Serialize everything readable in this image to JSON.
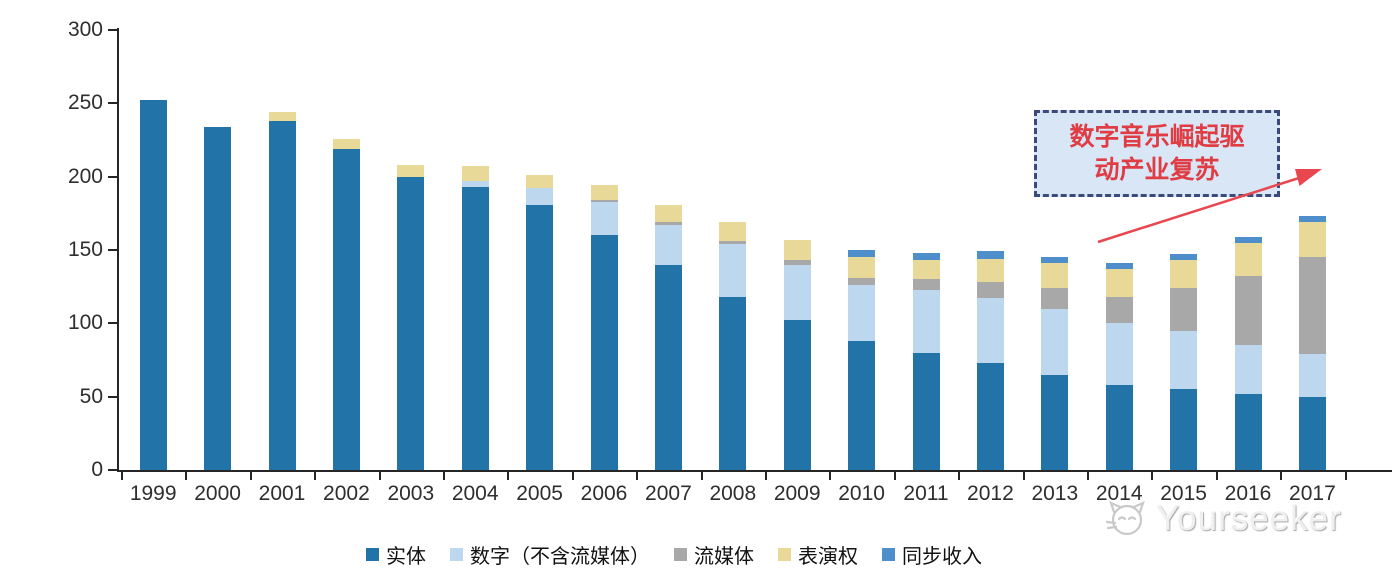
{
  "chart_data": {
    "type": "bar",
    "stacked": true,
    "title": "",
    "xlabel": "",
    "ylabel": "",
    "ylim": [
      0,
      300
    ],
    "yticks": [
      0,
      50,
      100,
      150,
      200,
      250,
      300
    ],
    "grid": false,
    "legend_position": "bottom",
    "categories": [
      "1999",
      "2000",
      "2001",
      "2002",
      "2003",
      "2004",
      "2005",
      "2006",
      "2007",
      "2008",
      "2009",
      "2010",
      "2011",
      "2012",
      "2013",
      "2014",
      "2015",
      "2016",
      "2017"
    ],
    "series": [
      {
        "key": "physical",
        "name": "实体",
        "color": "#2173a8",
        "values": [
          252,
          234,
          238,
          219,
          200,
          193,
          181,
          160,
          140,
          118,
          102,
          88,
          80,
          73,
          65,
          58,
          55,
          52,
          50
        ]
      },
      {
        "key": "digital",
        "name": "数字（不含流媒体）",
        "color": "#bdd7ee",
        "values": [
          0,
          0,
          0,
          0,
          0,
          4,
          11,
          23,
          27,
          36,
          38,
          38,
          43,
          44,
          45,
          42,
          40,
          33,
          29
        ]
      },
      {
        "key": "streaming",
        "name": "流媒体",
        "color": "#a8a8a8",
        "values": [
          0,
          0,
          0,
          0,
          0,
          0,
          0,
          1,
          2,
          2,
          3,
          5,
          7,
          11,
          14,
          18,
          29,
          47,
          66
        ]
      },
      {
        "key": "performance",
        "name": "表演权",
        "color": "#e9d999",
        "values": [
          0,
          0,
          6,
          7,
          8,
          10,
          9,
          10,
          12,
          13,
          14,
          14,
          13,
          16,
          17,
          19,
          19,
          23,
          24
        ]
      },
      {
        "key": "sync",
        "name": "同步收入",
        "color": "#4e8fcb",
        "values": [
          0,
          0,
          0,
          0,
          0,
          0,
          0,
          0,
          0,
          0,
          0,
          5,
          5,
          5,
          4,
          4,
          4,
          4,
          4
        ]
      }
    ]
  },
  "annotation": {
    "line1": "数字音乐崛起驱",
    "line2": "动产业复苏",
    "text_color": "#e03c44",
    "box_fill": "#d9e6f5",
    "box_border": "#3a4a7b",
    "arrow_color": "#e8474f"
  },
  "watermark": {
    "text": "Yourseeker",
    "icon": "cat-logo"
  }
}
